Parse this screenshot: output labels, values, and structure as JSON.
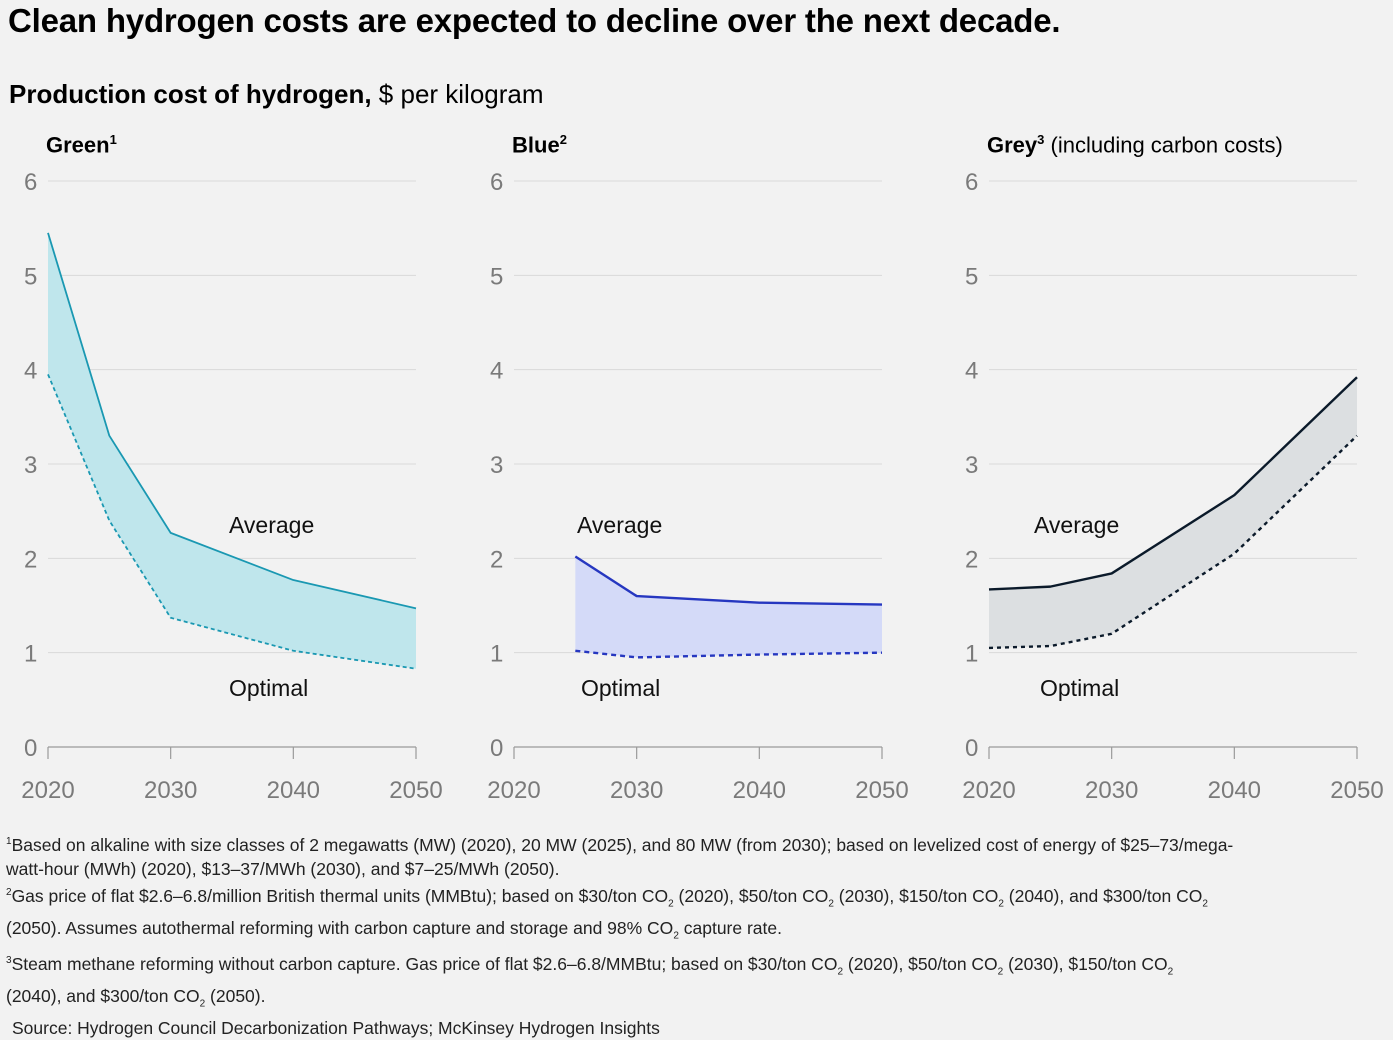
{
  "headline": "Clean hydrogen costs are expected to decline over the next decade.",
  "subtitle": {
    "bold": "Production cost of hydrogen,",
    "unit": "$ per kilogram"
  },
  "panels": [
    {
      "name": "Green",
      "sup": "1",
      "note": ""
    },
    {
      "name": "Blue",
      "sup": "2",
      "note": ""
    },
    {
      "name": "Grey",
      "sup": "3",
      "note": "(including carbon costs)"
    }
  ],
  "labels": {
    "average": "Average",
    "optimal": "Optimal"
  },
  "colors": {
    "green_line": "#1a98b2",
    "green_fill": "#bfe6ec",
    "blue_line": "#2637c0",
    "blue_fill": "#d4daf8",
    "grey_line": "#0b1a2a",
    "grey_fill": "#dcdfe1",
    "grid": "#d9d9d9",
    "axis_text": "#7a7a7a"
  },
  "chart_data": [
    {
      "type": "area",
      "title": "Green",
      "x": [
        2020,
        2025,
        2030,
        2040,
        2050
      ],
      "xticks": [
        2020,
        2030,
        2040,
        2050
      ],
      "ylim": [
        0,
        6
      ],
      "yticks": [
        0,
        1,
        2,
        3,
        4,
        5,
        6
      ],
      "grid": true,
      "series": [
        {
          "name": "Average",
          "values": [
            5.45,
            3.3,
            2.27,
            1.77,
            1.47
          ]
        },
        {
          "name": "Optimal",
          "values": [
            3.95,
            2.4,
            1.37,
            1.02,
            0.83
          ]
        }
      ]
    },
    {
      "type": "area",
      "title": "Blue",
      "x": [
        2025,
        2030,
        2040,
        2050
      ],
      "xticks": [
        2020,
        2030,
        2040,
        2050
      ],
      "ylim": [
        0,
        6
      ],
      "yticks": [
        0,
        1,
        2,
        3,
        4,
        5,
        6
      ],
      "grid": true,
      "series": [
        {
          "name": "Average",
          "values": [
            2.02,
            1.6,
            1.53,
            1.51
          ]
        },
        {
          "name": "Optimal",
          "values": [
            1.02,
            0.95,
            0.98,
            1.0
          ]
        }
      ]
    },
    {
      "type": "area",
      "title": "Grey",
      "x": [
        2020,
        2025,
        2030,
        2040,
        2050
      ],
      "xticks": [
        2020,
        2030,
        2040,
        2050
      ],
      "ylim": [
        0,
        6
      ],
      "yticks": [
        0,
        1,
        2,
        3,
        4,
        5,
        6
      ],
      "grid": true,
      "series": [
        {
          "name": "Average",
          "values": [
            1.67,
            1.7,
            1.84,
            2.67,
            3.92
          ]
        },
        {
          "name": "Optimal",
          "values": [
            1.05,
            1.07,
            1.2,
            2.05,
            3.3
          ]
        }
      ]
    }
  ],
  "footnotes": {
    "f1_sup": "1",
    "f1_a": "Based on alkaline with size classes of 2 megawatts (MW) (2020), 20 MW (2025), and 80 MW (from 2030); based on levelized cost of energy of $25–73/mega-",
    "f1_b": "watt-hour (MWh) (2020), $13–37/MWh (2030), and $7–25/MWh (2050).",
    "f2_sup": "2",
    "f2_a1": "Gas price of flat $2.6–6.8/million British thermal units (MMBtu); based on $30/ton CO",
    "f2_a2": " (2020), $50/ton CO",
    "f2_a3": " (2030), $150/ton CO",
    "f2_a4": " (2040), and $300/ton CO",
    "f2_b1": "(2050). Assumes autothermal reforming with carbon capture and storage and 98% CO",
    "f2_b2": " capture rate.",
    "f3_sup": "3",
    "f3_a1": "Steam methane reforming without carbon capture. Gas price of flat $2.6–6.8/MMBtu; based on $30/ton CO",
    "f3_a2": " (2020), $50/ton CO",
    "f3_a3": " (2030), $150/ton CO",
    "f3_b1": "(2040), and $300/ton CO",
    "f3_b2": " (2050).",
    "co2_sub": "2",
    "source": "Source: Hydrogen Council Decarbonization Pathways; McKinsey Hydrogen Insights"
  }
}
